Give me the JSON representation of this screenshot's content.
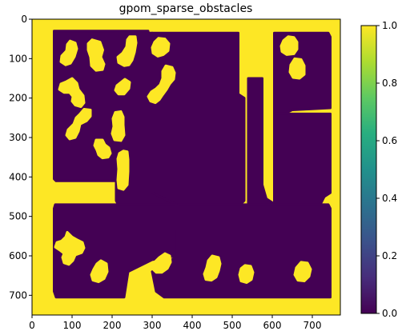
{
  "chart_data": {
    "type": "heatmap",
    "title": "gpom_sparse_obstacles",
    "xlim": [
      0,
      770
    ],
    "ylim": [
      750,
      0
    ],
    "x_ticks": [
      0,
      100,
      200,
      300,
      400,
      500,
      600,
      700
    ],
    "y_ticks": [
      0,
      100,
      200,
      300,
      400,
      500,
      600,
      700
    ],
    "x_tick_labels": [
      "0",
      "100",
      "200",
      "300",
      "400",
      "500",
      "600",
      "700"
    ],
    "y_tick_labels": [
      "0",
      "100",
      "200",
      "300",
      "400",
      "500",
      "600",
      "700"
    ],
    "colorbar": {
      "range": [
        0.0,
        1.0
      ],
      "ticks": [
        0.0,
        0.2,
        0.4,
        0.6,
        0.8,
        1.0
      ],
      "tick_labels": [
        "0.0",
        "0.2",
        "0.4",
        "0.6",
        "0.8",
        "1.0"
      ],
      "colormap": "viridis"
    },
    "background_value": 1.0,
    "free_value": 0.0,
    "free_regions": [
      {
        "name": "upper-left-room",
        "value": 0.0,
        "points": [
          [
            55,
            30
          ],
          [
            290,
            30
          ],
          [
            292,
            40
          ],
          [
            292,
            200
          ],
          [
            290,
            410
          ],
          [
            60,
            410
          ],
          [
            55,
            405
          ],
          [
            55,
            35
          ]
        ]
      },
      {
        "name": "center-column",
        "value": 0.0,
        "points": [
          [
            210,
            35
          ],
          [
            300,
            35
          ],
          [
            300,
            420
          ],
          [
            360,
            425
          ],
          [
            360,
            470
          ],
          [
            215,
            470
          ],
          [
            210,
            460
          ]
        ]
      },
      {
        "name": "center-room",
        "value": 0.0,
        "points": [
          [
            300,
            35
          ],
          [
            515,
            35
          ],
          [
            515,
            190
          ],
          [
            530,
            200
          ],
          [
            530,
            460
          ],
          [
            520,
            470
          ],
          [
            500,
            480
          ],
          [
            360,
            470
          ],
          [
            300,
            440
          ]
        ]
      },
      {
        "name": "right-column",
        "value": 0.0,
        "points": [
          [
            540,
            150
          ],
          [
            575,
            150
          ],
          [
            575,
            420
          ],
          [
            585,
            455
          ],
          [
            600,
            465
          ],
          [
            600,
            560
          ],
          [
            540,
            560
          ],
          [
            540,
            460
          ]
        ]
      },
      {
        "name": "upper-right-room",
        "value": 0.0,
        "points": [
          [
            605,
            35
          ],
          [
            740,
            35
          ],
          [
            745,
            45
          ],
          [
            745,
            225
          ],
          [
            690,
            228
          ],
          [
            650,
            230
          ],
          [
            620,
            245
          ],
          [
            610,
            255
          ],
          [
            605,
            245
          ]
        ]
      },
      {
        "name": "right-mid-room",
        "value": 0.0,
        "points": [
          [
            605,
            240
          ],
          [
            745,
            240
          ],
          [
            745,
            440
          ],
          [
            730,
            450
          ],
          [
            720,
            470
          ],
          [
            705,
            470
          ],
          [
            625,
            480
          ],
          [
            605,
            470
          ]
        ]
      },
      {
        "name": "lower-left-room",
        "value": 0.0,
        "points": [
          [
            58,
            470
          ],
          [
            360,
            470
          ],
          [
            362,
            600
          ],
          [
            300,
            610
          ],
          [
            240,
            640
          ],
          [
            230,
            705
          ],
          [
            60,
            705
          ],
          [
            55,
            690
          ],
          [
            55,
            480
          ]
        ]
      },
      {
        "name": "lower-right-room",
        "value": 0.0,
        "points": [
          [
            365,
            470
          ],
          [
            740,
            470
          ],
          [
            745,
            480
          ],
          [
            745,
            705
          ],
          [
            440,
            705
          ],
          [
            330,
            705
          ],
          [
            310,
            690
          ],
          [
            300,
            640
          ],
          [
            365,
            600
          ]
        ]
      }
    ],
    "obstacles": [
      {
        "name": "obstacle-a",
        "value": 1.0,
        "points": [
          [
            95,
            55
          ],
          [
            108,
            60
          ],
          [
            112,
            75
          ],
          [
            106,
            95
          ],
          [
            96,
            112
          ],
          [
            84,
            116
          ],
          [
            72,
            108
          ],
          [
            74,
            93
          ],
          [
            86,
            80
          ],
          [
            88,
            64
          ]
        ]
      },
      {
        "name": "obstacle-b",
        "value": 1.0,
        "points": [
          [
            150,
            52
          ],
          [
            170,
            58
          ],
          [
            177,
            78
          ],
          [
            172,
            96
          ],
          [
            180,
            114
          ],
          [
            176,
            128
          ],
          [
            160,
            130
          ],
          [
            148,
            118
          ],
          [
            146,
            96
          ],
          [
            140,
            78
          ],
          [
            140,
            62
          ]
        ]
      },
      {
        "name": "obstacle-c",
        "value": 1.0,
        "points": [
          [
            244,
            44
          ],
          [
            258,
            44
          ],
          [
            260,
            60
          ],
          [
            256,
            84
          ],
          [
            250,
            104
          ],
          [
            242,
            116
          ],
          [
            230,
            118
          ],
          [
            216,
            110
          ],
          [
            214,
            96
          ],
          [
            226,
            86
          ],
          [
            236,
            70
          ],
          [
            238,
            52
          ]
        ]
      },
      {
        "name": "obstacle-d",
        "value": 1.0,
        "points": [
          [
            100,
            150
          ],
          [
            112,
            162
          ],
          [
            116,
            178
          ],
          [
            128,
            194
          ],
          [
            130,
            212
          ],
          [
            122,
            222
          ],
          [
            108,
            218
          ],
          [
            100,
            208
          ],
          [
            102,
            196
          ],
          [
            94,
            186
          ],
          [
            80,
            186
          ],
          [
            68,
            178
          ],
          [
            72,
            164
          ],
          [
            86,
            158
          ]
        ]
      },
      {
        "name": "obstacle-e",
        "value": 1.0,
        "points": [
          [
            232,
            152
          ],
          [
            244,
            160
          ],
          [
            242,
            176
          ],
          [
            230,
            190
          ],
          [
            216,
            190
          ],
          [
            208,
            180
          ],
          [
            212,
            168
          ],
          [
            222,
            160
          ]
        ]
      },
      {
        "name": "obstacle-f",
        "value": 1.0,
        "points": [
          [
            130,
            228
          ],
          [
            146,
            230
          ],
          [
            146,
            246
          ],
          [
            136,
            258
          ],
          [
            120,
            266
          ],
          [
            116,
            284
          ],
          [
            108,
            300
          ],
          [
            94,
            304
          ],
          [
            86,
            294
          ],
          [
            90,
            280
          ],
          [
            104,
            266
          ],
          [
            110,
            250
          ],
          [
            120,
            240
          ]
        ]
      },
      {
        "name": "obstacle-g",
        "value": 1.0,
        "points": [
          [
            208,
            236
          ],
          [
            222,
            234
          ],
          [
            228,
            248
          ],
          [
            228,
            268
          ],
          [
            230,
            294
          ],
          [
            222,
            308
          ],
          [
            206,
            306
          ],
          [
            200,
            290
          ],
          [
            204,
            272
          ],
          [
            202,
            252
          ]
        ]
      },
      {
        "name": "obstacle-h",
        "value": 1.0,
        "points": [
          [
            160,
            306
          ],
          [
            176,
            306
          ],
          [
            182,
            318
          ],
          [
            192,
            326
          ],
          [
            196,
            340
          ],
          [
            190,
            350
          ],
          [
            176,
            352
          ],
          [
            166,
            344
          ],
          [
            162,
            332
          ],
          [
            156,
            320
          ]
        ]
      },
      {
        "name": "obstacle-i",
        "value": 1.0,
        "points": [
          [
            316,
            48
          ],
          [
            332,
            50
          ],
          [
            342,
            62
          ],
          [
            340,
            80
          ],
          [
            328,
            90
          ],
          [
            314,
            94
          ],
          [
            302,
            86
          ],
          [
            300,
            72
          ],
          [
            306,
            58
          ]
        ]
      },
      {
        "name": "obstacle-j",
        "value": 1.0,
        "points": [
          [
            334,
            118
          ],
          [
            350,
            122
          ],
          [
            356,
            136
          ],
          [
            354,
            152
          ],
          [
            344,
            164
          ],
          [
            336,
            178
          ],
          [
            326,
            192
          ],
          [
            318,
            204
          ],
          [
            308,
            212
          ],
          [
            296,
            208
          ],
          [
            290,
            196
          ],
          [
            298,
            184
          ],
          [
            310,
            176
          ],
          [
            320,
            166
          ],
          [
            326,
            150
          ],
          [
            326,
            132
          ]
        ]
      },
      {
        "name": "obstacle-k",
        "value": 1.0,
        "points": [
          [
            228,
            334
          ],
          [
            238,
            336
          ],
          [
            240,
            356
          ],
          [
            240,
            386
          ],
          [
            238,
            420
          ],
          [
            228,
            432
          ],
          [
            216,
            428
          ],
          [
            214,
            408
          ],
          [
            216,
            380
          ],
          [
            214,
            354
          ],
          [
            218,
            340
          ]
        ]
      },
      {
        "name": "obstacle-l",
        "value": 1.0,
        "points": [
          [
            640,
            44
          ],
          [
            654,
            46
          ],
          [
            662,
            58
          ],
          [
            662,
            76
          ],
          [
            654,
            88
          ],
          [
            636,
            90
          ],
          [
            624,
            82
          ],
          [
            622,
            68
          ],
          [
            628,
            54
          ]
        ]
      },
      {
        "name": "obstacle-m",
        "value": 1.0,
        "points": [
          [
            656,
            100
          ],
          [
            672,
            102
          ],
          [
            680,
            118
          ],
          [
            680,
            140
          ],
          [
            668,
            150
          ],
          [
            652,
            148
          ],
          [
            644,
            134
          ],
          [
            646,
            116
          ]
        ]
      },
      {
        "name": "obstacle-n",
        "value": 1.0,
        "points": [
          [
            88,
            540
          ],
          [
            100,
            552
          ],
          [
            114,
            560
          ],
          [
            126,
            566
          ],
          [
            130,
            580
          ],
          [
            124,
            592
          ],
          [
            108,
            598
          ],
          [
            102,
            612
          ],
          [
            92,
            622
          ],
          [
            80,
            618
          ],
          [
            76,
            604
          ],
          [
            80,
            594
          ],
          [
            70,
            586
          ],
          [
            58,
            578
          ],
          [
            62,
            566
          ],
          [
            74,
            562
          ],
          [
            84,
            552
          ]
        ]
      },
      {
        "name": "obstacle-o",
        "value": 1.0,
        "points": [
          [
            172,
            612
          ],
          [
            186,
            620
          ],
          [
            188,
            640
          ],
          [
            180,
            658
          ],
          [
            166,
            666
          ],
          [
            152,
            662
          ],
          [
            148,
            648
          ],
          [
            154,
            634
          ],
          [
            162,
            620
          ]
        ]
      },
      {
        "name": "obstacle-p",
        "value": 1.0,
        "points": [
          [
            332,
            594
          ],
          [
            344,
            600
          ],
          [
            346,
            616
          ],
          [
            338,
            632
          ],
          [
            324,
            642
          ],
          [
            310,
            642
          ],
          [
            300,
            632
          ],
          [
            304,
            618
          ],
          [
            318,
            604
          ]
        ]
      },
      {
        "name": "obstacle-q",
        "value": 1.0,
        "points": [
          [
            450,
            600
          ],
          [
            466,
            604
          ],
          [
            470,
            620
          ],
          [
            466,
            638
          ],
          [
            460,
            654
          ],
          [
            448,
            662
          ],
          [
            434,
            660
          ],
          [
            430,
            646
          ],
          [
            436,
            630
          ],
          [
            440,
            612
          ]
        ]
      },
      {
        "name": "obstacle-r",
        "value": 1.0,
        "points": [
          [
            532,
            624
          ],
          [
            546,
            626
          ],
          [
            552,
            642
          ],
          [
            548,
            660
          ],
          [
            536,
            668
          ],
          [
            522,
            664
          ],
          [
            518,
            648
          ],
          [
            522,
            632
          ]
        ]
      },
      {
        "name": "obstacle-s",
        "value": 1.0,
        "points": [
          [
            672,
            616
          ],
          [
            688,
            618
          ],
          [
            696,
            634
          ],
          [
            692,
            652
          ],
          [
            680,
            664
          ],
          [
            664,
            662
          ],
          [
            656,
            648
          ],
          [
            660,
            630
          ]
        ]
      }
    ]
  }
}
